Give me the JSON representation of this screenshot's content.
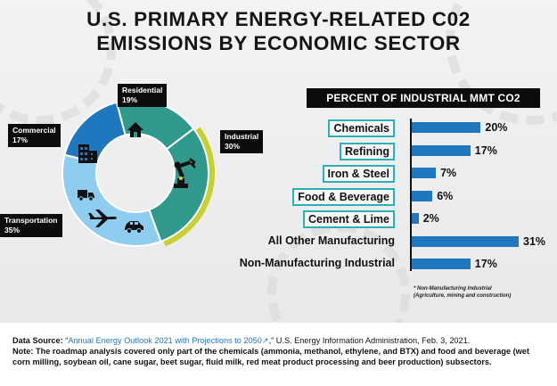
{
  "title": {
    "line1": "U.S. PRIMARY ENERGY-RELATED C02",
    "line2": "EMISSIONS BY ECONOMIC SECTOR"
  },
  "colors": {
    "residential": "#2f9a8c",
    "commercial": "#1f78be",
    "industrial": "#2f9a8c",
    "industrial_ring": "#c9cf2e",
    "transportation": "#8ecdf0",
    "bar": "#1f78be",
    "box_border": "#2ab0b7"
  },
  "icons": {
    "residential": "house-icon",
    "commercial": "building-icon",
    "industrial": "robot-arm-icon",
    "transportation": [
      "truck-icon",
      "airplane-icon",
      "car-icon"
    ]
  },
  "donut_labels": [
    {
      "key": "residential",
      "name": "Residential",
      "value": "19%"
    },
    {
      "key": "commercial",
      "name": "Commercial",
      "value": "17%"
    },
    {
      "key": "industrial",
      "name": "Industrial",
      "value": "30%"
    },
    {
      "key": "transportation",
      "name": "Transportation",
      "value": "35%"
    }
  ],
  "industrial_panel": {
    "header": "PERCENT OF INDUSTRIAL MMT CO2",
    "footnote_line1": "* Non-Manufacturing Industrial",
    "footnote_line2": "(Agriculture, mining and construction)"
  },
  "chart_data": [
    {
      "type": "pie",
      "title": "U.S. PRIMARY ENERGY-RELATED C02 EMISSIONS BY ECONOMIC SECTOR",
      "categories": [
        "Residential",
        "Commercial",
        "Transportation",
        "Industrial"
      ],
      "values": [
        19,
        17,
        35,
        30
      ],
      "donut": true
    },
    {
      "type": "bar",
      "orientation": "horizontal",
      "title": "PERCENT OF INDUSTRIAL MMT CO2",
      "categories": [
        "Chemicals",
        "Refining",
        "Iron & Steel",
        "Food & Beverage",
        "Cement & Lime",
        "All Other Manufacturing",
        "Non-Manufacturing Industrial"
      ],
      "values": [
        20,
        17,
        7,
        6,
        2,
        31,
        17
      ],
      "value_labels": [
        "20%",
        "17%",
        "7%",
        "6%",
        "2%",
        "31%",
        "17%"
      ],
      "boxed": [
        true,
        true,
        true,
        true,
        true,
        false,
        false
      ],
      "xlim": [
        0,
        31
      ]
    }
  ],
  "source": {
    "label": "Data Source:",
    "open_quote": "“",
    "link_text": "Annual Energy Outlook 2021 with Projections to 2050",
    "link_icon": "↗",
    "after_link": ",” U.S. Energy Information Administration, Feb. 3, 2021.",
    "note_label": "Note:",
    "note_text": "The roadmap analysis covered only part of the chemicals (ammonia, methanol, ethylene, and BTX) and food and beverage (wet corn milling, soybean oil, cane sugar, beet sugar, fluid milk, red meat product processing and beer production) subsectors."
  }
}
